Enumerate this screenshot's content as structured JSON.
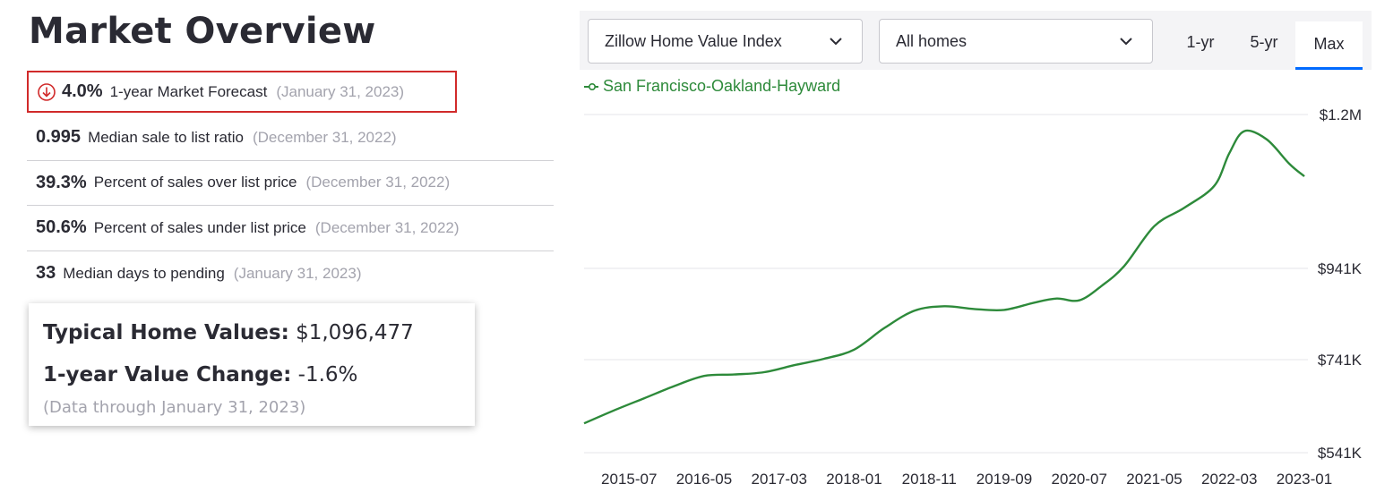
{
  "market": {
    "title": "Market Overview",
    "stats": [
      {
        "value": "4.0%",
        "label": "1-year Market Forecast",
        "date": "(January 31, 2023)",
        "icon": "arrow-down-circle-icon",
        "highlighted": true
      },
      {
        "value": "0.995",
        "label": "Median sale to list ratio",
        "date": "(December 31, 2022)"
      },
      {
        "value": "39.3%",
        "label": "Percent of sales over list price",
        "date": "(December 31, 2022)"
      },
      {
        "value": "50.6%",
        "label": "Percent of sales under list price",
        "date": "(December 31, 2022)"
      },
      {
        "value": "33",
        "label": "Median days to pending",
        "date": "(January 31, 2023)"
      }
    ],
    "card": {
      "home_values_label": "Typical Home Values:",
      "home_values_value": "$1,096,477",
      "change_label": "1-year Value Change:",
      "change_value": "-1.6%",
      "footnote": "(Data through January 31, 2023)"
    }
  },
  "controls": {
    "index_select": "Zillow Home Value Index",
    "homes_select": "All homes",
    "ranges": [
      "1-yr",
      "5-yr",
      "Max"
    ],
    "active_range": "Max"
  },
  "colors": {
    "line": "#2d8a3a",
    "highlight_border": "#d12a2a",
    "active_tab": "#006aff"
  },
  "chart_data": {
    "type": "line",
    "title": "",
    "xlabel": "",
    "ylabel": "",
    "legend_position": "top-left",
    "grid": true,
    "yticks": [
      541000,
      741000,
      941000,
      1200000
    ],
    "ytick_labels": [
      "$541K",
      "$741K",
      "$941K",
      "$1.2M"
    ],
    "xtick_labels": [
      "2015-07",
      "2016-05",
      "2017-03",
      "2018-01",
      "2018-11",
      "2019-09",
      "2020-07",
      "2021-05",
      "2022-03",
      "2023-01"
    ],
    "x_range": [
      "2015-01",
      "2023-01"
    ],
    "series": [
      {
        "name": "San Francisco-Oakland-Hayward",
        "x": [
          "2015-01",
          "2015-05",
          "2015-09",
          "2016-01",
          "2016-05",
          "2016-09",
          "2017-01",
          "2017-05",
          "2017-09",
          "2018-01",
          "2018-05",
          "2018-09",
          "2019-01",
          "2019-05",
          "2019-09",
          "2020-01",
          "2020-04",
          "2020-07",
          "2020-10",
          "2021-01",
          "2021-05",
          "2021-09",
          "2022-01",
          "2022-03",
          "2022-05",
          "2022-08",
          "2022-11",
          "2023-01"
        ],
        "y": [
          604000,
          632000,
          658000,
          684000,
          706000,
          709000,
          714000,
          729000,
          743000,
          763000,
          810000,
          848000,
          858000,
          852000,
          850000,
          866000,
          875000,
          871000,
          903000,
          945000,
          1012000,
          1043000,
          1080000,
          1135000,
          1172000,
          1158000,
          1117000,
          1096000
        ]
      }
    ]
  }
}
